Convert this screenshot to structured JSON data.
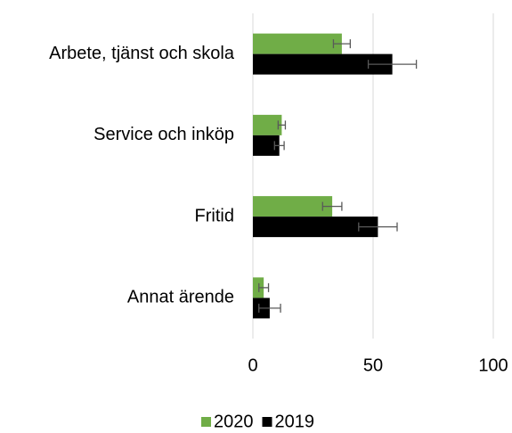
{
  "chart_data": {
    "type": "bar",
    "orientation": "horizontal",
    "categories": [
      "Arbete, tjänst och skola",
      "Service och inköp",
      "Fritid",
      "Annat ärende"
    ],
    "series": [
      {
        "name": "2020",
        "color": "#70ad47",
        "values": [
          37,
          12,
          33,
          4.5
        ],
        "errors": [
          3.5,
          1.5,
          4,
          2
        ]
      },
      {
        "name": "2019",
        "color": "#000000",
        "values": [
          58,
          11,
          52,
          7
        ],
        "errors": [
          10,
          2,
          8,
          4.5
        ]
      }
    ],
    "xlim": [
      0,
      100
    ],
    "xticks": [
      0,
      50,
      100
    ],
    "grid": true,
    "legend": "bottom"
  }
}
